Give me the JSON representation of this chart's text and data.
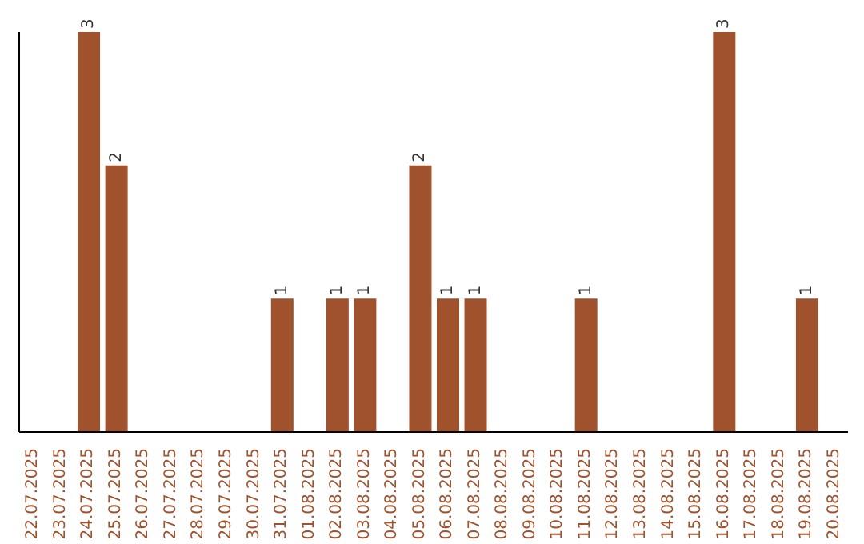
{
  "chart_data": {
    "type": "bar",
    "categories": [
      "22.07.2025",
      "23.07.2025",
      "24.07.2025",
      "25.07.2025",
      "26.07.2025",
      "27.07.2025",
      "28.07.2025",
      "29.07.2025",
      "30.07.2025",
      "31.07.2025",
      "01.08.2025",
      "02.08.2025",
      "03.08.2025",
      "04.08.2025",
      "05.08.2025",
      "06.08.2025",
      "07.08.2025",
      "08.08.2025",
      "09.08.2025",
      "10.08.2025",
      "11.08.2025",
      "12.08.2025",
      "13.08.2025",
      "14.08.2025",
      "15.08.2025",
      "16.08.2025",
      "17.08.2025",
      "18.08.2025",
      "19.08.2025",
      "20.08.2025"
    ],
    "values": [
      0,
      0,
      3,
      2,
      0,
      0,
      0,
      0,
      0,
      1,
      0,
      1,
      1,
      0,
      2,
      1,
      1,
      0,
      0,
      0,
      1,
      0,
      0,
      0,
      0,
      3,
      0,
      0,
      1,
      0
    ],
    "value_labels": [
      null,
      null,
      "3",
      "2",
      null,
      null,
      null,
      null,
      null,
      "1",
      null,
      "1",
      "1",
      null,
      "2",
      "1",
      "1",
      null,
      null,
      null,
      "1",
      null,
      null,
      null,
      null,
      "3",
      null,
      null,
      "1",
      null
    ],
    "color": "#a0522d"
  }
}
